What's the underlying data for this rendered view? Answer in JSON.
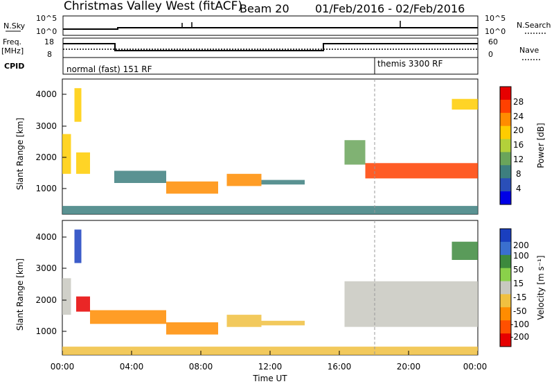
{
  "header": {
    "station": "Christmas Valley West (fitACF)",
    "beam": "Beam 20",
    "dates": "01/Feb/2016 - 02/Feb/2016"
  },
  "strips": {
    "nsky_label": "N.Sky",
    "nsky_ticks": [
      "10^5",
      "10^0"
    ],
    "nsearch_label": "N.Search",
    "nsearch_ticks": [
      "10^5",
      "10^0"
    ],
    "freq_label_1": "Freq.",
    "freq_label_2": "[MHz]",
    "freq_ticks": [
      "18",
      "8"
    ],
    "nave_label": "Nave",
    "nave_ticks": [
      "60",
      "0"
    ],
    "cpid_label": "CPID",
    "cpid_1": "normal (fast) 151 RF",
    "cpid_2": "themis 3300 RF"
  },
  "axes": {
    "ylabel": "Slant Range [km]",
    "xlabel": "Time UT",
    "yticks": [
      "4000",
      "3000",
      "2000",
      "1000"
    ],
    "xticks": [
      "00:00",
      "04:00",
      "08:00",
      "12:00",
      "16:00",
      "20:00",
      "00:00"
    ]
  },
  "colorbars": {
    "power_label": "Power [dB]",
    "power_ticks": [
      "28",
      "24",
      "20",
      "16",
      "12",
      "8",
      "4"
    ],
    "velocity_label": "Velocity [m s⁻¹]",
    "velocity_ticks": [
      "200",
      "100",
      "50",
      "15",
      "-15",
      "-50",
      "-100",
      "-200"
    ]
  },
  "chart_data": [
    {
      "type": "heatmap",
      "title": "Power",
      "xlabel": "Time UT",
      "ylabel": "Slant Range [km]",
      "xlim": [
        0,
        24
      ],
      "ylim": [
        180,
        4600
      ],
      "colorbar": {
        "label": "Power [dB]",
        "range": [
          0,
          32
        ]
      },
      "regions": [
        {
          "t": [
            0.0,
            0.5
          ],
          "r": [
            1500,
            2800
          ],
          "value": 18
        },
        {
          "t": [
            0.7,
            1.1
          ],
          "r": [
            3200,
            4300
          ],
          "value": 18
        },
        {
          "t": [
            0.8,
            1.6
          ],
          "r": [
            1500,
            2200
          ],
          "value": 20
        },
        {
          "t": [
            3.0,
            6.0
          ],
          "r": [
            1200,
            1600
          ],
          "value": 10
        },
        {
          "t": [
            6.0,
            9.0
          ],
          "r": [
            850,
            1250
          ],
          "value": 22
        },
        {
          "t": [
            9.5,
            11.5
          ],
          "r": [
            1100,
            1500
          ],
          "value": 22
        },
        {
          "t": [
            11.5,
            14.0
          ],
          "r": [
            1150,
            1300
          ],
          "value": 10
        },
        {
          "t": [
            16.3,
            17.5
          ],
          "r": [
            1800,
            2600
          ],
          "value": 14
        },
        {
          "t": [
            17.5,
            24.0
          ],
          "r": [
            1350,
            1850
          ],
          "value": 26
        },
        {
          "t": [
            22.5,
            24.0
          ],
          "r": [
            3600,
            3950
          ],
          "value": 18
        },
        {
          "t": [
            0.0,
            24.0
          ],
          "r": [
            180,
            450
          ],
          "value": 10
        }
      ]
    },
    {
      "type": "heatmap",
      "title": "Velocity",
      "xlabel": "Time UT",
      "ylabel": "Slant Range [km]",
      "xlim": [
        0,
        24
      ],
      "ylim": [
        180,
        4600
      ],
      "colorbar": {
        "label": "Velocity [m s⁻¹]",
        "range": [
          -200,
          200
        ]
      },
      "regions": [
        {
          "t": [
            0.0,
            0.5
          ],
          "r": [
            1500,
            2700
          ],
          "value": 0
        },
        {
          "t": [
            0.7,
            1.1
          ],
          "r": [
            3200,
            4300
          ],
          "value": 200
        },
        {
          "t": [
            0.8,
            1.6
          ],
          "r": [
            1600,
            2100
          ],
          "value": -200
        },
        {
          "t": [
            1.6,
            6.0
          ],
          "r": [
            1200,
            1650
          ],
          "value": -100
        },
        {
          "t": [
            6.0,
            9.0
          ],
          "r": [
            850,
            1250
          ],
          "value": -80
        },
        {
          "t": [
            9.5,
            11.5
          ],
          "r": [
            1100,
            1500
          ],
          "value": -50
        },
        {
          "t": [
            11.5,
            14.0
          ],
          "r": [
            1150,
            1300
          ],
          "value": -60
        },
        {
          "t": [
            16.3,
            24.0
          ],
          "r": [
            1100,
            2600
          ],
          "value": 0
        },
        {
          "t": [
            22.5,
            24.0
          ],
          "r": [
            3300,
            3900
          ],
          "value": 100
        },
        {
          "t": [
            0.0,
            24.0
          ],
          "r": [
            180,
            450
          ],
          "value": -30
        }
      ]
    }
  ]
}
